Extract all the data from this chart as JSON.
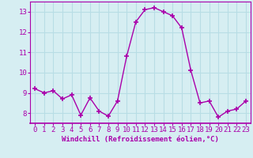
{
  "x": [
    0,
    1,
    2,
    3,
    4,
    5,
    6,
    7,
    8,
    9,
    10,
    11,
    12,
    13,
    14,
    15,
    16,
    17,
    18,
    19,
    20,
    21,
    22,
    23
  ],
  "y": [
    9.2,
    9.0,
    9.1,
    8.7,
    8.9,
    7.9,
    8.75,
    8.1,
    7.85,
    8.6,
    10.8,
    12.5,
    13.1,
    13.2,
    13.0,
    12.8,
    12.2,
    10.1,
    8.5,
    8.6,
    7.8,
    8.1,
    8.2,
    8.6
  ],
  "line_color": "#AA00AA",
  "marker": "+",
  "markersize": 4,
  "linewidth": 1.0,
  "xlabel": "Windchill (Refroidissement éolien,°C)",
  "xlim": [
    -0.5,
    23.5
  ],
  "ylim": [
    7.5,
    13.5
  ],
  "yticks": [
    8,
    9,
    10,
    11,
    12,
    13
  ],
  "xticks": [
    0,
    1,
    2,
    3,
    4,
    5,
    6,
    7,
    8,
    9,
    10,
    11,
    12,
    13,
    14,
    15,
    16,
    17,
    18,
    19,
    20,
    21,
    22,
    23
  ],
  "xtick_labels": [
    "0",
    "1",
    "2",
    "3",
    "4",
    "5",
    "6",
    "7",
    "8",
    "9",
    "10",
    "11",
    "12",
    "13",
    "14",
    "15",
    "16",
    "17",
    "18",
    "19",
    "20",
    "21",
    "22",
    "23"
  ],
  "bg_color": "#d6eef2",
  "grid_color": "#b8dde5",
  "tick_color": "#AA00AA",
  "xlabel_color": "#AA00AA",
  "xlabel_fontsize": 6.5,
  "tick_fontsize": 6.5,
  "spine_color": "#AA00AA"
}
